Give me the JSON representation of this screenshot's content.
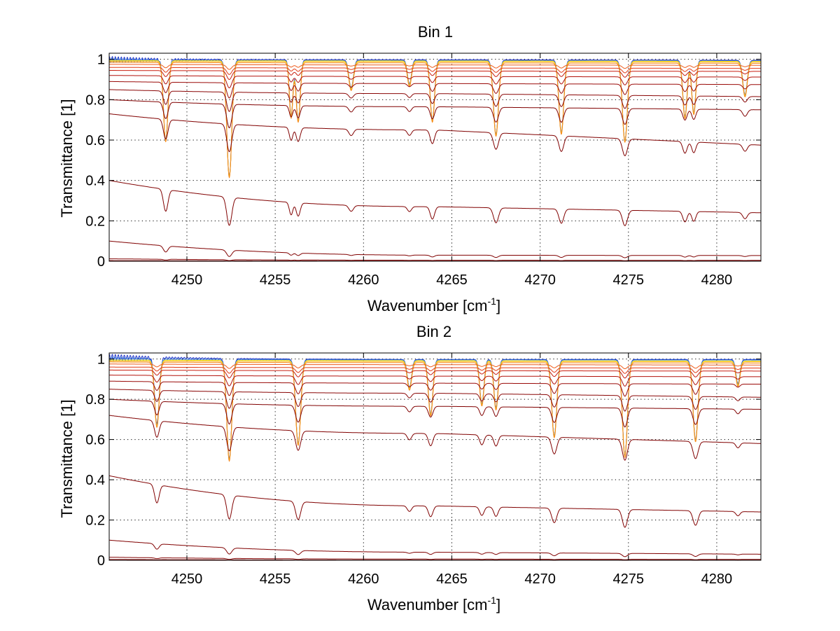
{
  "chart_data": [
    {
      "type": "line",
      "title": "Bin 1",
      "xlabel": "Wavenumber [cm",
      "xlabel_sup": "-1",
      "xlabel_end": "]",
      "ylabel": "Transmittance [1]",
      "xlim": [
        4245.6,
        4282.5
      ],
      "ylim": [
        0,
        1.03
      ],
      "xticks": [
        4250,
        4255,
        4260,
        4265,
        4270,
        4275,
        4280
      ],
      "yticks": [
        0,
        0.2,
        0.4,
        0.6,
        0.8,
        1
      ],
      "ytick_labels": [
        "0",
        "0.2",
        "0.4",
        "0.6",
        "0.8",
        "1"
      ],
      "grid": true,
      "lines": [
        {
          "x": 4248.8,
          "w": 0.18
        },
        {
          "x": 4252.4,
          "w": 0.2
        },
        {
          "x": 4255.9,
          "w": 0.14
        },
        {
          "x": 4256.3,
          "w": 0.16
        },
        {
          "x": 4259.3,
          "w": 0.18
        },
        {
          "x": 4262.6,
          "w": 0.16
        },
        {
          "x": 4263.9,
          "w": 0.17
        },
        {
          "x": 4267.5,
          "w": 0.2
        },
        {
          "x": 4271.2,
          "w": 0.19
        },
        {
          "x": 4274.8,
          "w": 0.2
        },
        {
          "x": 4278.2,
          "w": 0.17
        },
        {
          "x": 4278.7,
          "w": 0.16
        },
        {
          "x": 4281.6,
          "w": 0.18
        }
      ],
      "depth_profile": [
        0.4,
        0.58,
        0.28,
        0.3,
        0.14,
        0.12,
        0.3,
        0.37,
        0.36,
        0.4,
        0.28,
        0.26,
        0.17
      ],
      "series": [
        {
          "color": "#1f33c8",
          "levels": [
            1.0,
            0.998,
            0.995
          ],
          "bump": 0.015
        },
        {
          "color": "#2a6fd6",
          "levels": [
            0.995,
            0.994,
            0.992
          ],
          "bump": 0.012
        },
        {
          "color": "#f4e41c",
          "levels": [
            0.994,
            0.992,
            0.99
          ],
          "bump": 0.0
        },
        {
          "color": "#f8b91e",
          "levels": [
            0.99,
            0.988,
            0.986
          ],
          "bump": 0.0
        },
        {
          "color": "#f58a1d",
          "levels": [
            0.985,
            0.982,
            0.98
          ],
          "bump": 0.0
        },
        {
          "color": "#ee5b1a",
          "levels": [
            0.975,
            0.972,
            0.97
          ],
          "bump": 0.0
        },
        {
          "color": "#e23a17",
          "levels": [
            0.96,
            0.957,
            0.955
          ],
          "bump": 0.0
        },
        {
          "color": "#c81e10",
          "levels": [
            0.945,
            0.942,
            0.94
          ],
          "bump": 0.0
        },
        {
          "color": "#b2120b",
          "levels": [
            0.92,
            0.915,
            0.912
          ],
          "bump": 0.0
        },
        {
          "color": "#9a0a08",
          "levels": [
            0.89,
            0.88,
            0.875
          ],
          "bump": 0.0
        },
        {
          "color": "#8a0606",
          "levels": [
            0.85,
            0.83,
            0.815
          ],
          "bump": 0.0
        },
        {
          "color": "#800000",
          "levels": [
            0.8,
            0.765,
            0.75
          ],
          "bump": 0.0
        },
        {
          "color": "#800000",
          "levels": [
            0.73,
            0.65,
            0.575
          ],
          "bump": 0.0
        },
        {
          "color": "#800000",
          "levels": [
            0.4,
            0.27,
            0.24
          ],
          "bump": 0.0
        },
        {
          "color": "#800000",
          "levels": [
            0.1,
            0.03,
            0.028
          ],
          "bump": 0.0
        },
        {
          "color": "#800000",
          "levels": [
            0.012,
            0.005,
            0.004
          ],
          "bump": 0.0
        },
        {
          "color": "#800000",
          "levels": [
            0.003,
            0.001,
            0.001
          ],
          "bump": 0.0
        }
      ]
    },
    {
      "type": "line",
      "title": "Bin 2",
      "xlabel": "Wavenumber [cm",
      "xlabel_sup": "-1",
      "xlabel_end": "]",
      "ylabel": "Transmittance [1]",
      "xlim": [
        4245.6,
        4282.5
      ],
      "ylim": [
        0,
        1.03
      ],
      "xticks": [
        4250,
        4255,
        4260,
        4265,
        4270,
        4275,
        4280
      ],
      "yticks": [
        0,
        0.2,
        0.4,
        0.6,
        0.8,
        1
      ],
      "ytick_labels": [
        "0",
        "0.2",
        "0.4",
        "0.6",
        "0.8",
        "1"
      ],
      "grid": true,
      "lines": [
        {
          "x": 4248.3,
          "w": 0.18
        },
        {
          "x": 4252.4,
          "w": 0.2
        },
        {
          "x": 4256.3,
          "w": 0.2
        },
        {
          "x": 4262.6,
          "w": 0.17
        },
        {
          "x": 4263.8,
          "w": 0.18
        },
        {
          "x": 4266.7,
          "w": 0.17
        },
        {
          "x": 4267.5,
          "w": 0.17
        },
        {
          "x": 4270.8,
          "w": 0.2
        },
        {
          "x": 4274.8,
          "w": 0.2
        },
        {
          "x": 4278.8,
          "w": 0.2
        },
        {
          "x": 4281.2,
          "w": 0.16
        }
      ],
      "depth_profile": [
        0.33,
        0.5,
        0.42,
        0.14,
        0.27,
        0.22,
        0.24,
        0.38,
        0.48,
        0.4,
        0.12
      ],
      "series": [
        {
          "color": "#1f33c8",
          "levels": [
            1.01,
            0.998,
            0.998
          ],
          "bump": 0.015
        },
        {
          "color": "#2a6fd6",
          "levels": [
            1.0,
            0.996,
            0.995
          ],
          "bump": 0.012
        },
        {
          "color": "#f4e41c",
          "levels": [
            0.995,
            0.992,
            0.99
          ],
          "bump": 0.0
        },
        {
          "color": "#f8b91e",
          "levels": [
            0.99,
            0.988,
            0.986
          ],
          "bump": 0.0
        },
        {
          "color": "#f58a1d",
          "levels": [
            0.985,
            0.982,
            0.98
          ],
          "bump": 0.0
        },
        {
          "color": "#ee5b1a",
          "levels": [
            0.975,
            0.972,
            0.97
          ],
          "bump": 0.0
        },
        {
          "color": "#e23a17",
          "levels": [
            0.96,
            0.957,
            0.955
          ],
          "bump": 0.0
        },
        {
          "color": "#c81e10",
          "levels": [
            0.945,
            0.942,
            0.94
          ],
          "bump": 0.0
        },
        {
          "color": "#b2120b",
          "levels": [
            0.92,
            0.915,
            0.912
          ],
          "bump": 0.0
        },
        {
          "color": "#9a0a08",
          "levels": [
            0.89,
            0.88,
            0.875
          ],
          "bump": 0.0
        },
        {
          "color": "#8a0606",
          "levels": [
            0.85,
            0.83,
            0.81
          ],
          "bump": 0.0
        },
        {
          "color": "#800000",
          "levels": [
            0.8,
            0.765,
            0.75
          ],
          "bump": 0.0
        },
        {
          "color": "#800000",
          "levels": [
            0.72,
            0.63,
            0.58
          ],
          "bump": 0.0
        },
        {
          "color": "#800000",
          "levels": [
            0.42,
            0.27,
            0.24
          ],
          "bump": 0.0
        },
        {
          "color": "#800000",
          "levels": [
            0.1,
            0.04,
            0.03
          ],
          "bump": 0.0
        },
        {
          "color": "#800000",
          "levels": [
            0.015,
            0.006,
            0.004
          ],
          "bump": 0.0
        },
        {
          "color": "#800000",
          "levels": [
            0.004,
            0.001,
            0.001
          ],
          "bump": 0.0
        }
      ]
    }
  ]
}
